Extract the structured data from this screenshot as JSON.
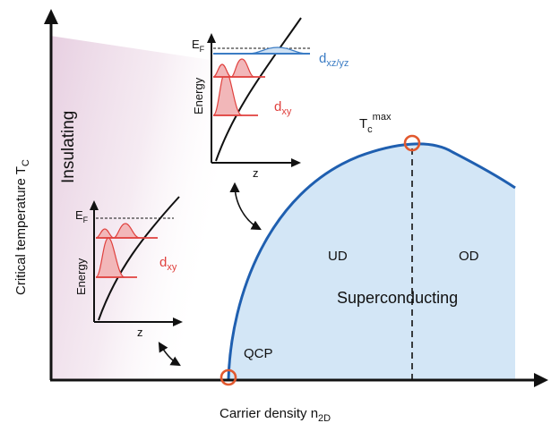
{
  "axes": {
    "x_label_main": "Carrier density n",
    "x_label_sub": "2D",
    "y_label_main": "Critical temperature T",
    "y_label_sub": "C"
  },
  "regions": {
    "insulating": "Insulating",
    "superconducting": "Superconducting",
    "underdoped": "UD",
    "overdoped": "OD",
    "qcp": "QCP"
  },
  "tc_max": {
    "main": "T",
    "sub": "c",
    "sup": "max"
  },
  "inset_top": {
    "ef_main": "E",
    "ef_sub": "F",
    "energy": "Energy",
    "z": "z",
    "band1_main": "d",
    "band1_sub": "xz/yz",
    "band2_main": "d",
    "band2_sub": "xy"
  },
  "inset_bottom": {
    "ef_main": "E",
    "ef_sub": "F",
    "energy": "Energy",
    "z": "z",
    "band_main": "d",
    "band_sub": "xy"
  },
  "colors": {
    "axis": "#111111",
    "dome_fill": "#d3e6f6",
    "dome_edge": "#1f5fb0",
    "marker": "#e2592f",
    "dxy": "#e0413e",
    "dxy_fill": "#f2b7b9",
    "dxz": "#3b7cc4",
    "insulating_tint": "#ecd7e6"
  }
}
